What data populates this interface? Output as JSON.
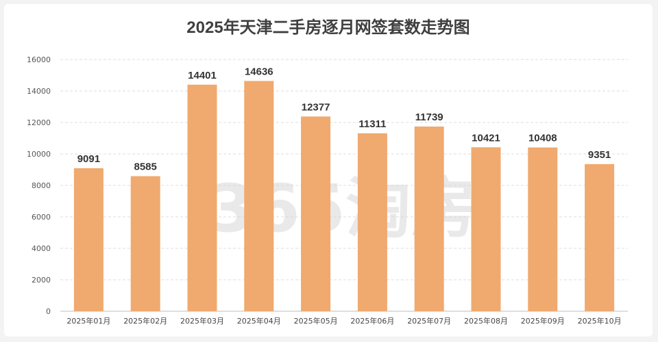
{
  "chart_data": {
    "type": "bar",
    "title": "2025年天津二手房逐月网签套数走势图",
    "categories": [
      "2025年01月",
      "2025年02月",
      "2025年03月",
      "2025年04月",
      "2025年05月",
      "2025年06月",
      "2025年07月",
      "2025年08月",
      "2025年09月",
      "2025年10月"
    ],
    "values": [
      9091,
      8585,
      14401,
      14636,
      12377,
      11311,
      11739,
      10421,
      10408,
      9351
    ],
    "yticks": [
      0,
      2000,
      4000,
      6000,
      8000,
      10000,
      12000,
      14000,
      16000
    ],
    "ylim": [
      0,
      16000
    ],
    "grid": true,
    "bar_color": "#f0a96e",
    "watermark": "365淘房"
  }
}
